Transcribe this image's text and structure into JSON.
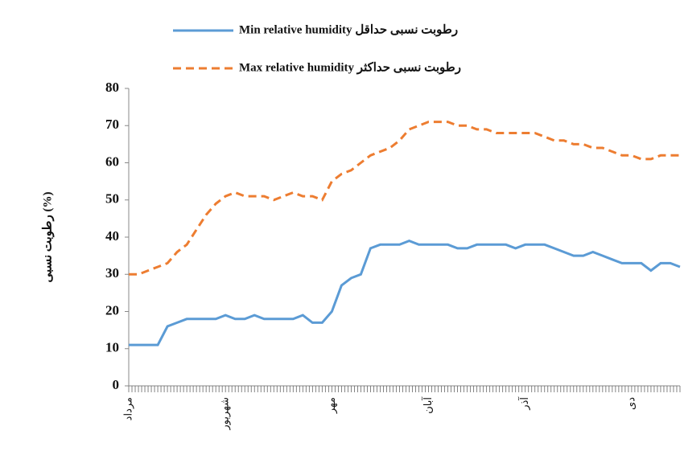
{
  "chart_data": {
    "type": "line",
    "y_label": "رطوبت نسبی (%)",
    "categories": [
      "مرداد",
      null,
      null,
      null,
      null,
      null,
      null,
      null,
      null,
      null,
      "شهریور",
      null,
      null,
      null,
      null,
      null,
      null,
      null,
      null,
      null,
      null,
      "مهر",
      null,
      null,
      null,
      null,
      null,
      null,
      null,
      null,
      null,
      "آبان",
      null,
      null,
      null,
      null,
      null,
      null,
      null,
      null,
      null,
      "آذر",
      null,
      null,
      null,
      null,
      null,
      null,
      null,
      null,
      null,
      null,
      "دی",
      null,
      null,
      null,
      null,
      null
    ],
    "series": [
      {
        "name": "Min relative humidity رطوبت نسبی حداقل",
        "color": "#5b9bd5",
        "dash": "solid",
        "values": [
          11,
          11,
          11,
          11,
          16,
          17,
          18,
          18,
          18,
          18,
          19,
          18,
          18,
          19,
          18,
          18,
          18,
          18,
          19,
          17,
          17,
          20,
          27,
          29,
          30,
          37,
          38,
          38,
          38,
          39,
          38,
          38,
          38,
          38,
          37,
          37,
          38,
          38,
          38,
          38,
          37,
          38,
          38,
          38,
          37,
          36,
          35,
          35,
          36,
          35,
          34,
          33,
          33,
          33,
          31,
          33,
          33,
          32
        ]
      },
      {
        "name": "Max relative humidity رطوبت نسبی حداکثر",
        "color": "#ed7d31",
        "dash": "dashed",
        "values": [
          30,
          30,
          31,
          32,
          33,
          36,
          38,
          42,
          46,
          49,
          51,
          52,
          51,
          51,
          51,
          50,
          51,
          52,
          51,
          51,
          50,
          55,
          57,
          58,
          60,
          62,
          63,
          64,
          66,
          69,
          70,
          71,
          71,
          71,
          70,
          70,
          69,
          69,
          68,
          68,
          68,
          68,
          68,
          67,
          66,
          66,
          65,
          65,
          64,
          64,
          63,
          62,
          62,
          61,
          61,
          62,
          62,
          62
        ]
      }
    ],
    "ylim": [
      0,
      80
    ],
    "yticks": [
      0,
      10,
      20,
      30,
      40,
      50,
      60,
      70,
      80
    ],
    "grid": false
  }
}
